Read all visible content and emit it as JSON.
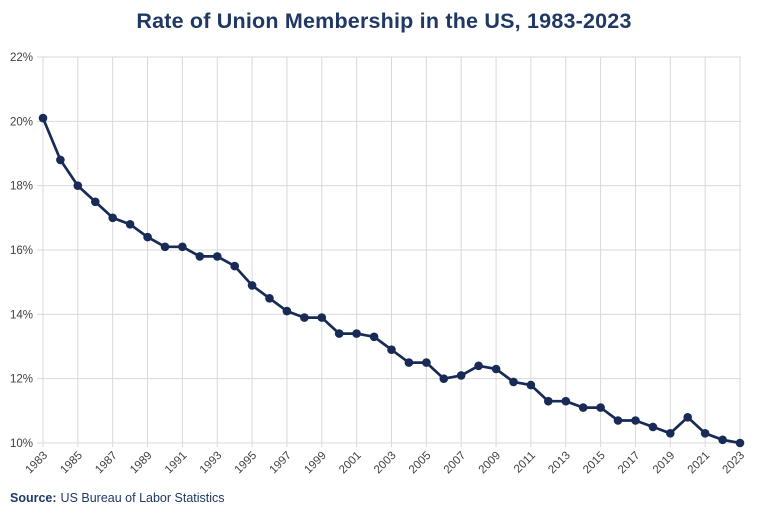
{
  "chart_data": {
    "type": "line",
    "title": "Rate of Union Membership in the US, 1983-2023",
    "x": [
      1983,
      1984,
      1985,
      1986,
      1987,
      1988,
      1989,
      1990,
      1991,
      1992,
      1993,
      1994,
      1995,
      1996,
      1997,
      1998,
      1999,
      2000,
      2001,
      2002,
      2003,
      2004,
      2005,
      2006,
      2007,
      2008,
      2009,
      2010,
      2011,
      2012,
      2013,
      2014,
      2015,
      2016,
      2017,
      2018,
      2019,
      2020,
      2021,
      2022,
      2023
    ],
    "series": [
      {
        "name": "Union membership rate",
        "values": [
          20.1,
          18.8,
          18.0,
          17.5,
          17.0,
          16.8,
          16.4,
          16.1,
          16.1,
          15.8,
          15.8,
          15.5,
          14.9,
          14.5,
          14.1,
          13.9,
          13.9,
          13.4,
          13.4,
          13.3,
          12.9,
          12.5,
          12.5,
          12.0,
          12.1,
          12.4,
          12.3,
          11.9,
          11.8,
          11.3,
          11.3,
          11.1,
          11.1,
          10.7,
          10.7,
          10.5,
          10.3,
          10.8,
          10.3,
          10.1,
          10.0
        ]
      }
    ],
    "xlabel": "",
    "ylabel": "",
    "ylim": [
      10,
      22
    ],
    "yticks": [
      10,
      12,
      14,
      16,
      18,
      20,
      22
    ],
    "ytick_suffix": "%",
    "xticks": [
      1983,
      1985,
      1987,
      1989,
      1991,
      1993,
      1995,
      1997,
      1999,
      2001,
      2003,
      2005,
      2007,
      2009,
      2011,
      2013,
      2015,
      2017,
      2019,
      2021,
      2023
    ],
    "grid": "on",
    "legend": "none",
    "colors": {
      "line": "#172b56",
      "marker": "#172b56",
      "grid": "#d9d9d9",
      "tick_label": "#404040",
      "title": "#1f3864"
    }
  },
  "footer": {
    "source_label": "Source:",
    "source_text": "US Bureau of Labor Statistics"
  }
}
